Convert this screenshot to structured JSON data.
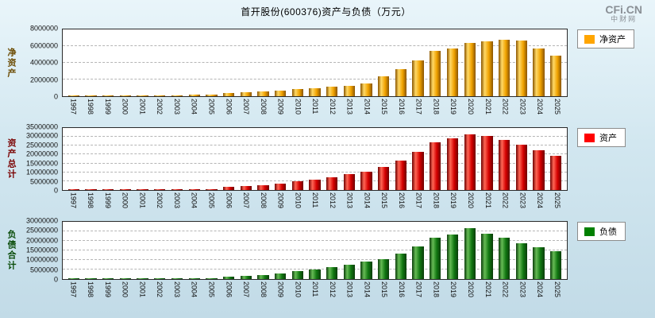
{
  "header": {
    "title": "首开股份(600376)资产与负债（万元）",
    "logo_main": "CFi.CN",
    "logo_sub": "中财网"
  },
  "chart_data": [
    {
      "type": "bar",
      "name": "net-assets",
      "ylabel": "净资产",
      "legend": "净资产",
      "unit": "万元",
      "legend_color": "#FFA500",
      "bar_colors": [
        "#8a5500",
        "#ffd966",
        "#f0a200"
      ],
      "axis_label_color": "#6b4a00",
      "ylim": [
        0,
        8000000
      ],
      "ytick_step": 2000000,
      "grid": "dashed-horizontal",
      "legend_position": "right",
      "categories": [
        "1997",
        "1998",
        "1999",
        "2000",
        "2001",
        "2002",
        "2003",
        "2004",
        "2005",
        "2006",
        "2007",
        "2008",
        "2009",
        "2010",
        "2011",
        "2012",
        "2013",
        "2014",
        "2015",
        "2016",
        "2017",
        "2018",
        "2019",
        "2020",
        "2021",
        "2022",
        "2023",
        "2024",
        "2025"
      ],
      "values": [
        80000,
        90000,
        100000,
        110000,
        120000,
        130000,
        140000,
        150000,
        160000,
        400000,
        450000,
        550000,
        700000,
        900000,
        1000000,
        1100000,
        1250000,
        1500000,
        2400000,
        3200000,
        4300000,
        5400000,
        5700000,
        6400000,
        6600000,
        6800000,
        6700000,
        5700000,
        4900000
      ]
    },
    {
      "type": "bar",
      "name": "total-assets",
      "ylabel": "资产总计",
      "legend": "资产",
      "unit": "万元",
      "legend_color": "#FF0000",
      "bar_colors": [
        "#6e0000",
        "#ff6655",
        "#d40000"
      ],
      "axis_label_color": "#7a0000",
      "ylim": [
        0,
        35000000
      ],
      "ytick_step": 5000000,
      "grid": "dashed-horizontal",
      "legend_position": "right",
      "categories": [
        "1997",
        "1998",
        "1999",
        "2000",
        "2001",
        "2002",
        "2003",
        "2004",
        "2005",
        "2006",
        "2007",
        "2008",
        "2009",
        "2010",
        "2011",
        "2012",
        "2013",
        "2014",
        "2015",
        "2016",
        "2017",
        "2018",
        "2019",
        "2020",
        "2021",
        "2022",
        "2023",
        "2024",
        "2025"
      ],
      "values": [
        250000,
        280000,
        300000,
        330000,
        360000,
        400000,
        430000,
        470000,
        500000,
        1600000,
        2100000,
        2600000,
        3600000,
        5000000,
        6000000,
        7200000,
        8800000,
        10500000,
        13000000,
        16500000,
        21500000,
        27000000,
        29000000,
        31500000,
        30500000,
        28500000,
        25500000,
        22500000,
        19500000
      ]
    },
    {
      "type": "bar",
      "name": "total-liabilities",
      "ylabel": "负债合计",
      "legend": "负债",
      "unit": "万元",
      "legend_color": "#008000",
      "bar_colors": [
        "#0a3d0a",
        "#66bb55",
        "#117711"
      ],
      "axis_label_color": "#0b4d0b",
      "ylim": [
        0,
        30000000
      ],
      "ytick_step": 5000000,
      "grid": "dashed-horizontal",
      "legend_position": "right",
      "categories": [
        "1997",
        "1998",
        "1999",
        "2000",
        "2001",
        "2002",
        "2003",
        "2004",
        "2005",
        "2006",
        "2007",
        "2008",
        "2009",
        "2010",
        "2011",
        "2012",
        "2013",
        "2014",
        "2015",
        "2016",
        "2017",
        "2018",
        "2019",
        "2020",
        "2021",
        "2022",
        "2023",
        "2024",
        "2025"
      ],
      "values": [
        170000,
        190000,
        200000,
        220000,
        240000,
        270000,
        290000,
        320000,
        340000,
        1200000,
        1650000,
        2050000,
        2900000,
        4100000,
        5000000,
        6100000,
        7550000,
        9000000,
        10600000,
        13300000,
        17200000,
        21600000,
        23300000,
        26500000,
        23900000,
        21700000,
        18800000,
        16800000,
        14600000
      ]
    }
  ]
}
